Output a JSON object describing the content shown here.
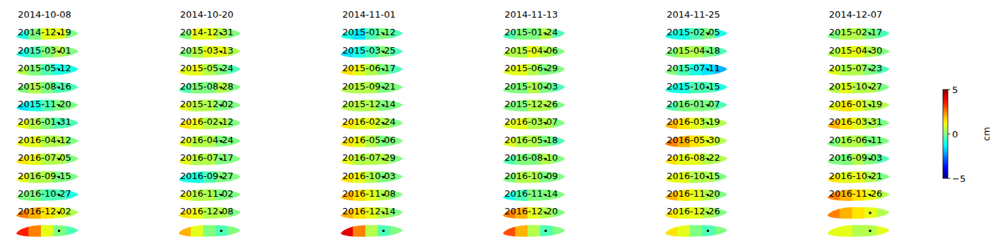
{
  "chart_data": {
    "type": "map_grid",
    "color": "jet",
    "panels": [
      {
        "title": "2014-10-08",
        "values": [
          -1,
          0,
          1,
          1,
          0
        ]
      },
      {
        "title": "2014-10-20",
        "values": [
          0,
          1,
          1,
          0.5,
          0
        ]
      },
      {
        "title": "2014-11-01",
        "values": [
          -1,
          -1.5,
          -0.5,
          0,
          -0.5
        ]
      },
      {
        "title": "2014-11-13",
        "values": [
          -0.5,
          0,
          0,
          0.5,
          -0.5
        ]
      },
      {
        "title": "2014-11-25",
        "values": [
          -1,
          -1,
          -0.5,
          0,
          -1
        ]
      },
      {
        "title": "2014-12-07",
        "values": [
          0,
          0.5,
          0.5,
          0,
          -0.5
        ]
      },
      {
        "title": "2014-12-19",
        "values": [
          -1,
          -0.5,
          0,
          0.5,
          0
        ]
      },
      {
        "title": "2014-12-31",
        "values": [
          0,
          0.5,
          1,
          1,
          0.5
        ]
      },
      {
        "title": "2015-01-12",
        "values": [
          -1.5,
          -1,
          -0.5,
          0,
          -0.5
        ]
      },
      {
        "title": "2015-01-24",
        "values": [
          0.5,
          0.5,
          1,
          0.5,
          0
        ]
      },
      {
        "title": "2015-02-05",
        "values": [
          0,
          0.5,
          0.5,
          0,
          -0.5
        ]
      },
      {
        "title": "2015-02-17",
        "values": [
          0.5,
          1,
          1,
          0.5,
          0
        ]
      },
      {
        "title": "2015-03-01",
        "values": [
          0.5,
          0,
          -0.5,
          -1,
          -1
        ]
      },
      {
        "title": "2015-03-13",
        "values": [
          1,
          1,
          0.5,
          0,
          -0.5
        ]
      },
      {
        "title": "2015-03-25",
        "values": [
          1.5,
          1,
          0.5,
          0,
          -0.5
        ]
      },
      {
        "title": "2015-04-06",
        "values": [
          1,
          1,
          0.5,
          0,
          0
        ]
      },
      {
        "title": "2015-04-18",
        "values": [
          0,
          -0.5,
          -1,
          -1.5,
          -2
        ]
      },
      {
        "title": "2015-04-30",
        "values": [
          1,
          0.5,
          0.5,
          0,
          -0.5
        ]
      },
      {
        "title": "2015-05-12",
        "values": [
          0,
          0.5,
          0,
          -0.5,
          -0.5
        ]
      },
      {
        "title": "2015-05-24",
        "values": [
          -0.5,
          0,
          0,
          0.5,
          0
        ]
      },
      {
        "title": "2015-06-17",
        "values": [
          0.5,
          0.5,
          0.5,
          0,
          0
        ]
      },
      {
        "title": "2015-06-29",
        "values": [
          0,
          0,
          0.5,
          0,
          -0.5
        ]
      },
      {
        "title": "2015-07-11",
        "values": [
          -1,
          -1,
          -0.5,
          -0.5,
          -1
        ]
      },
      {
        "title": "2015-07-23",
        "values": [
          0.5,
          1,
          0.5,
          0.5,
          0
        ]
      },
      {
        "title": "2015-08-16",
        "values": [
          -1.5,
          -1,
          -0.5,
          0,
          0
        ]
      },
      {
        "title": "2015-08-28",
        "values": [
          1,
          0.5,
          0.5,
          0,
          0
        ]
      },
      {
        "title": "2015-09-21",
        "values": [
          0.5,
          0.5,
          0.5,
          0,
          0
        ]
      },
      {
        "title": "2015-10-03",
        "values": [
          0,
          0,
          0.5,
          0.5,
          0
        ]
      },
      {
        "title": "2015-10-15",
        "values": [
          -0.5,
          0,
          0,
          0,
          -0.5
        ]
      },
      {
        "title": "2015-10-27",
        "values": [
          1,
          1.5,
          1,
          0.5,
          0.5
        ]
      },
      {
        "title": "2015-11-20",
        "values": [
          1,
          0.5,
          0,
          -0.5,
          -0.5
        ]
      },
      {
        "title": "2015-12-02",
        "values": [
          1.5,
          1,
          0.5,
          0.5,
          0
        ]
      },
      {
        "title": "2015-12-14",
        "values": [
          1.5,
          1,
          1,
          0.5,
          0
        ]
      },
      {
        "title": "2015-12-26",
        "values": [
          1,
          1,
          0.5,
          0.5,
          0
        ]
      },
      {
        "title": "2016-01-07",
        "values": [
          2,
          1.5,
          1,
          0.5,
          0.5
        ]
      },
      {
        "title": "2016-01-19",
        "values": [
          2,
          1.5,
          1,
          0.5,
          0
        ]
      },
      {
        "title": "2016-01-31",
        "values": [
          1,
          1,
          0.5,
          0.5,
          0
        ]
      },
      {
        "title": "2016-02-12",
        "values": [
          1,
          0.5,
          0.5,
          0,
          0
        ]
      },
      {
        "title": "2016-02-24",
        "values": [
          1.5,
          1,
          0.5,
          0,
          0
        ]
      },
      {
        "title": "2016-03-07",
        "values": [
          1,
          0.5,
          0.5,
          0,
          -0.5
        ]
      },
      {
        "title": "2016-03-19",
        "values": [
          2.5,
          2,
          1.5,
          1,
          0.5
        ]
      },
      {
        "title": "2016-03-31",
        "values": [
          0,
          0.5,
          0.5,
          0,
          0
        ]
      },
      {
        "title": "2016-04-12",
        "values": [
          1.5,
          1,
          0.5,
          0.5,
          0
        ]
      },
      {
        "title": "2016-04-24",
        "values": [
          1,
          0.5,
          0.5,
          0,
          0
        ]
      },
      {
        "title": "2016-05-06",
        "values": [
          1,
          0.5,
          0.5,
          0.5,
          0
        ]
      },
      {
        "title": "2016-05-18",
        "values": [
          -0.5,
          0,
          0,
          0.5,
          0
        ]
      },
      {
        "title": "2016-05-30",
        "values": [
          1.5,
          1,
          1,
          0.5,
          0.5
        ]
      },
      {
        "title": "2016-06-11",
        "values": [
          0,
          0,
          0.5,
          0,
          -0.5
        ]
      },
      {
        "title": "2016-07-05",
        "values": [
          1,
          0.5,
          0.5,
          0,
          0
        ]
      },
      {
        "title": "2016-07-17",
        "values": [
          -1,
          -1,
          -0.5,
          0,
          0
        ]
      },
      {
        "title": "2016-07-29",
        "values": [
          1.5,
          1,
          0.5,
          0,
          0
        ]
      },
      {
        "title": "2016-08-10",
        "values": [
          0,
          0.5,
          0.5,
          0,
          0
        ]
      },
      {
        "title": "2016-08-22",
        "values": [
          1,
          1,
          0.5,
          0.5,
          0
        ]
      },
      {
        "title": "2016-09-03",
        "values": [
          1.5,
          1,
          1,
          0.5,
          0
        ]
      },
      {
        "title": "2016-09-15",
        "values": [
          0,
          0,
          -0.5,
          -0.5,
          -1
        ]
      },
      {
        "title": "2016-09-27",
        "values": [
          1,
          0.5,
          0.5,
          0,
          0
        ]
      },
      {
        "title": "2016-10-03",
        "values": [
          2,
          1.5,
          1,
          0.5,
          0
        ]
      },
      {
        "title": "2016-10-09",
        "values": [
          -1,
          -0.5,
          0,
          0,
          0
        ]
      },
      {
        "title": "2016-10-15",
        "values": [
          2,
          1.5,
          1,
          0.5,
          0
        ]
      },
      {
        "title": "2016-10-21",
        "values": [
          2.5,
          2,
          1.5,
          1,
          0.5
        ]
      },
      {
        "title": "2016-10-27",
        "values": [
          2.5,
          2,
          1.5,
          1,
          0.5
        ]
      },
      {
        "title": "2016-11-02",
        "values": [
          1.5,
          1,
          0.5,
          0.5,
          0
        ]
      },
      {
        "title": "2016-11-08",
        "values": [
          2,
          1.5,
          1,
          0.5,
          0
        ]
      },
      {
        "title": "2016-11-14",
        "values": [
          2.5,
          2,
          1,
          0.5,
          0
        ]
      },
      {
        "title": "2016-11-20",
        "values": [
          1.5,
          1,
          1,
          0.5,
          0
        ]
      },
      {
        "title": "2016-11-26",
        "values": [
          2.5,
          2,
          1.5,
          1,
          0.5
        ]
      },
      {
        "title": "2016-12-02",
        "values": [
          3.5,
          2.5,
          1,
          0,
          -0.5
        ]
      },
      {
        "title": "2016-12-08",
        "values": [
          2,
          1,
          0,
          -0.5,
          0
        ]
      },
      {
        "title": "2016-12-14",
        "values": [
          4,
          2.5,
          0.5,
          -0.5,
          0
        ]
      },
      {
        "title": "2016-12-20",
        "values": [
          3,
          2,
          0.5,
          -0.5,
          0
        ]
      },
      {
        "title": "2016-12-26",
        "values": [
          1.5,
          1,
          0,
          -0.5,
          0
        ]
      },
      {
        "title": null,
        "values": [
          1,
          1,
          0.5,
          0.5,
          1
        ]
      }
    ],
    "colorbar": {
      "range": [
        -5,
        5
      ],
      "ticks": [
        {
          "value": -5,
          "label": "−5"
        },
        0,
        5
      ],
      "label": "cm"
    }
  }
}
